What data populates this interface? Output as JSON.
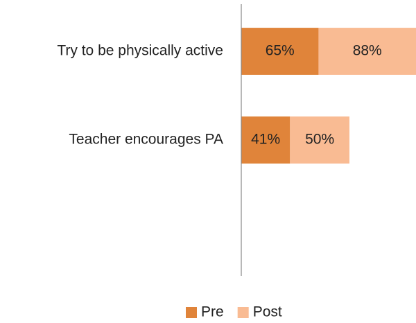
{
  "chart_data": {
    "type": "stacked_hbar",
    "categories": [
      "Try to be physically active",
      "Teacher encourages PA",
      null
    ],
    "series": [
      {
        "name": "Pre",
        "color": "#e0843a",
        "values": [
          65,
          41,
          null
        ],
        "value_labels": [
          "65%",
          "41%",
          null
        ]
      },
      {
        "name": "Post",
        "color": "#f9bb93",
        "values": [
          88,
          50,
          null
        ],
        "value_labels": [
          "88%",
          "50%",
          null
        ]
      }
    ],
    "xlim": [
      0,
      147
    ],
    "legend": "bottom"
  }
}
